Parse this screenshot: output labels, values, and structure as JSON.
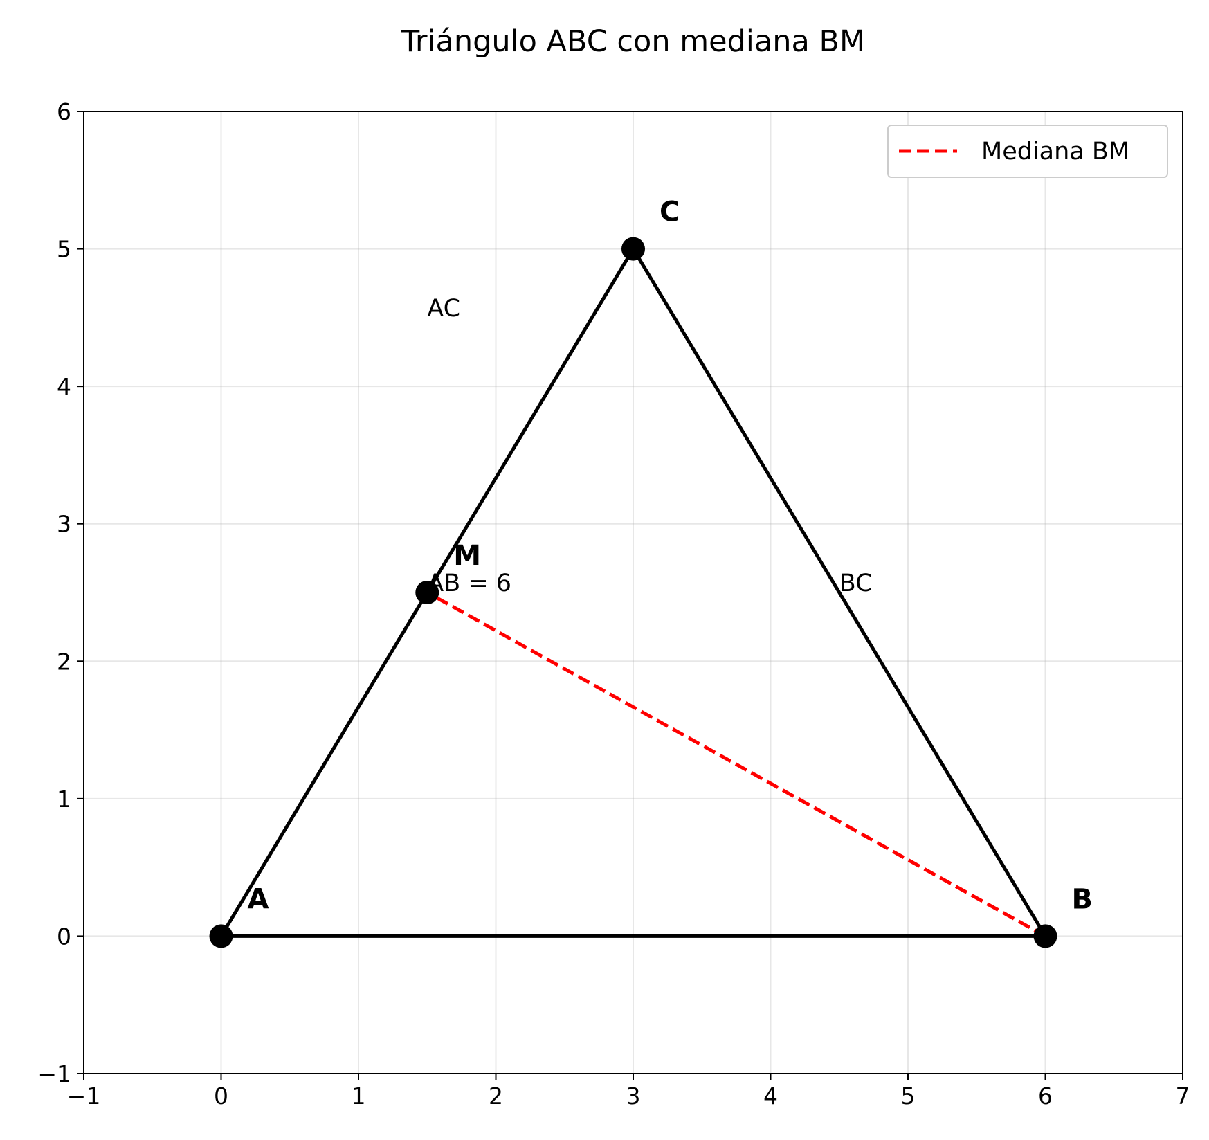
{
  "chart_data": {
    "type": "scatter",
    "title": "Triángulo ABC con mediana BM",
    "xlabel": "",
    "ylabel": "",
    "xlim": [
      -1,
      7
    ],
    "ylim": [
      -1,
      6
    ],
    "x_ticks": [
      -1,
      0,
      1,
      2,
      3,
      4,
      5,
      6,
      7
    ],
    "y_ticks": [
      -1,
      0,
      1,
      2,
      3,
      4,
      5,
      6
    ],
    "x_tick_labels": [
      "−1",
      "0",
      "1",
      "2",
      "3",
      "4",
      "5",
      "6",
      "7"
    ],
    "y_tick_labels": [
      "−1",
      "0",
      "1",
      "2",
      "3",
      "4",
      "5",
      "6"
    ],
    "grid": true,
    "legend": {
      "position": "upper right",
      "entries": [
        "Mediana BM"
      ]
    },
    "points": [
      {
        "label": "A",
        "x": 0,
        "y": 0
      },
      {
        "label": "B",
        "x": 6,
        "y": 0
      },
      {
        "label": "C",
        "x": 3,
        "y": 5
      },
      {
        "label": "M",
        "x": 1.5,
        "y": 2.5
      }
    ],
    "segments": [
      {
        "from": "A",
        "to": "B",
        "style": "solid",
        "color": "#000000"
      },
      {
        "from": "B",
        "to": "C",
        "style": "solid",
        "color": "#000000"
      },
      {
        "from": "C",
        "to": "A",
        "style": "solid",
        "color": "#000000"
      },
      {
        "from": "B",
        "to": "M",
        "style": "dashed",
        "color": "#ff0000",
        "name": "Mediana BM"
      }
    ],
    "annotations": [
      {
        "text": "AB = 6",
        "x": 1.5,
        "y": 2.5
      },
      {
        "text": "AC",
        "x": 1.5,
        "y": 4.5
      },
      {
        "text": "BC",
        "x": 4.5,
        "y": 2.5
      }
    ]
  }
}
